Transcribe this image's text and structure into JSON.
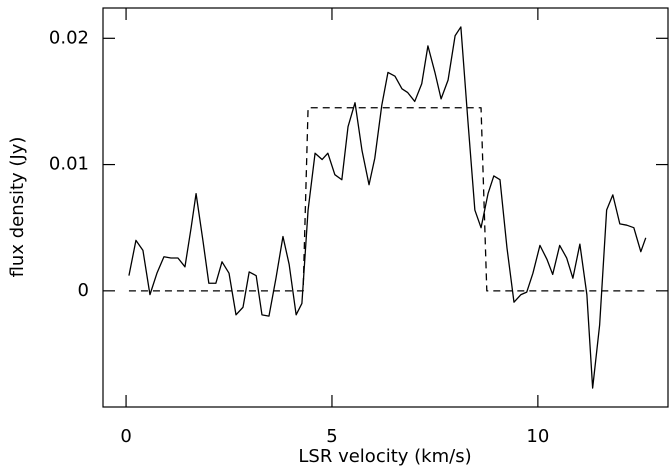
{
  "chart_data": {
    "type": "line",
    "x_label": "LSR velocity (km/s)",
    "y_label": "flux density (Jy)",
    "xlim": [
      -0.56,
      13.16
    ],
    "ylim": [
      -0.0092,
      0.0224
    ],
    "xticks": [
      0,
      5,
      10
    ],
    "yticks": [
      0,
      0.01,
      0.02
    ],
    "series": [
      {
        "color": "#000000",
        "style": "solid",
        "x": [
          0.07,
          0.24,
          0.41,
          0.58,
          0.75,
          0.92,
          1.09,
          1.26,
          1.43,
          1.58,
          1.7,
          1.87,
          2.01,
          2.18,
          2.33,
          2.5,
          2.67,
          2.84,
          2.99,
          3.16,
          3.3,
          3.47,
          3.64,
          3.81,
          3.96,
          4.13,
          4.27,
          4.42,
          4.59,
          4.76,
          4.9,
          5.07,
          5.24,
          5.39,
          5.56,
          5.73,
          5.9,
          6.04,
          6.21,
          6.36,
          6.53,
          6.7,
          6.84,
          7.01,
          7.18,
          7.33,
          7.5,
          7.65,
          7.82,
          7.99,
          8.13,
          8.3,
          8.47,
          8.62,
          8.79,
          8.93,
          9.08,
          9.25,
          9.42,
          9.59,
          9.73,
          9.88,
          10.05,
          10.22,
          10.36,
          10.53,
          10.7,
          10.85,
          11.02,
          11.19,
          11.33,
          11.5,
          11.67,
          11.82,
          11.99,
          12.16,
          12.33,
          12.5,
          12.62
        ],
        "values": [
          0.0012,
          0.004,
          0.0032,
          -0.0003,
          0.0014,
          0.0027,
          0.0026,
          0.0026,
          0.0019,
          0.005,
          0.0077,
          0.0039,
          0.0006,
          0.0006,
          0.0023,
          0.0014,
          -0.0019,
          -0.0013,
          0.0015,
          0.0012,
          -0.0019,
          -0.002,
          0.001,
          0.0043,
          0.0021,
          -0.0019,
          -0.001,
          0.0064,
          0.0109,
          0.0104,
          0.0109,
          0.0092,
          0.0088,
          0.013,
          0.0149,
          0.0111,
          0.0084,
          0.0105,
          0.0147,
          0.0173,
          0.017,
          0.016,
          0.0157,
          0.015,
          0.0164,
          0.0194,
          0.0173,
          0.0152,
          0.0167,
          0.0202,
          0.0209,
          0.0135,
          0.0064,
          0.005,
          0.0077,
          0.0091,
          0.0088,
          0.0034,
          -0.0009,
          -0.0003,
          -0.0001,
          0.0014,
          0.0036,
          0.0025,
          0.0013,
          0.0036,
          0.0026,
          0.001,
          0.0037,
          -0.0003,
          -0.0077,
          -0.0027,
          0.0064,
          0.0076,
          0.0053,
          0.0052,
          0.005,
          0.0031,
          0.0042
        ]
      },
      {
        "color": "#000000",
        "style": "dashed",
        "x": [
          0.07,
          4.3,
          4.42,
          8.62,
          8.76,
          12.62
        ],
        "values": [
          0,
          0,
          0.0145,
          0.0145,
          0,
          0
        ]
      }
    ]
  }
}
